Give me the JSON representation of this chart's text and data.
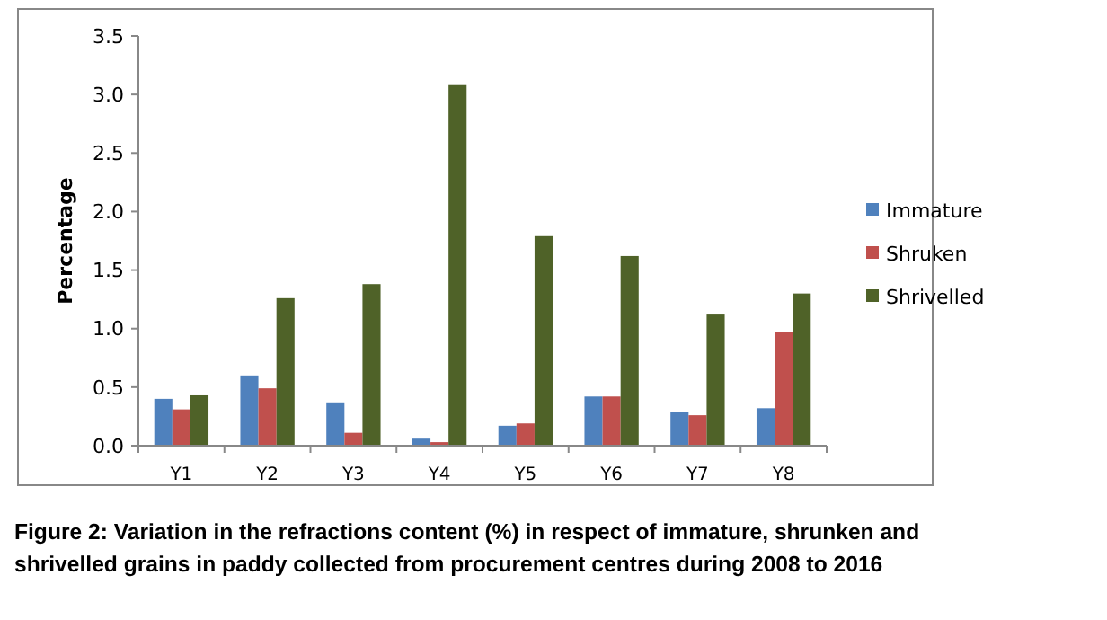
{
  "chart_data": {
    "type": "bar",
    "ylabel": "Percentage",
    "categories": [
      "Y1",
      "Y2",
      "Y3",
      "Y4",
      "Y5",
      "Y6",
      "Y7",
      "Y8"
    ],
    "series": [
      {
        "name": "Immature",
        "color": "#4f81bd",
        "values": [
          0.4,
          0.6,
          0.37,
          0.06,
          0.17,
          0.42,
          0.29,
          0.32
        ]
      },
      {
        "name": "Shruken",
        "color": "#c0504d",
        "values": [
          0.31,
          0.49,
          0.11,
          0.03,
          0.19,
          0.42,
          0.26,
          0.97
        ]
      },
      {
        "name": "Shrivelled",
        "color": "#4f6228",
        "values": [
          0.43,
          1.26,
          1.38,
          3.08,
          1.79,
          1.62,
          1.12,
          1.3
        ]
      }
    ],
    "ylim": [
      0,
      3.5
    ],
    "yticks": [
      {
        "value": 0,
        "label": "0.0"
      },
      {
        "value": 0.5,
        "label": "0.5"
      },
      {
        "value": 1,
        "label": "1.0"
      },
      {
        "value": 1.5,
        "label": "1.5"
      },
      {
        "value": 2,
        "label": "2.0"
      },
      {
        "value": 2.5,
        "label": "2.5"
      },
      {
        "value": 3,
        "label": "3.0"
      },
      {
        "value": 3.5,
        "label": "3.5"
      }
    ],
    "grid": false,
    "legend": "right",
    "annotations": [
      "Figure 2: Variation in the refractions content (%) in respect of immature,  shrunken and shrivelled grains in paddy collected from procurement centres during 2008 to 2016"
    ]
  }
}
